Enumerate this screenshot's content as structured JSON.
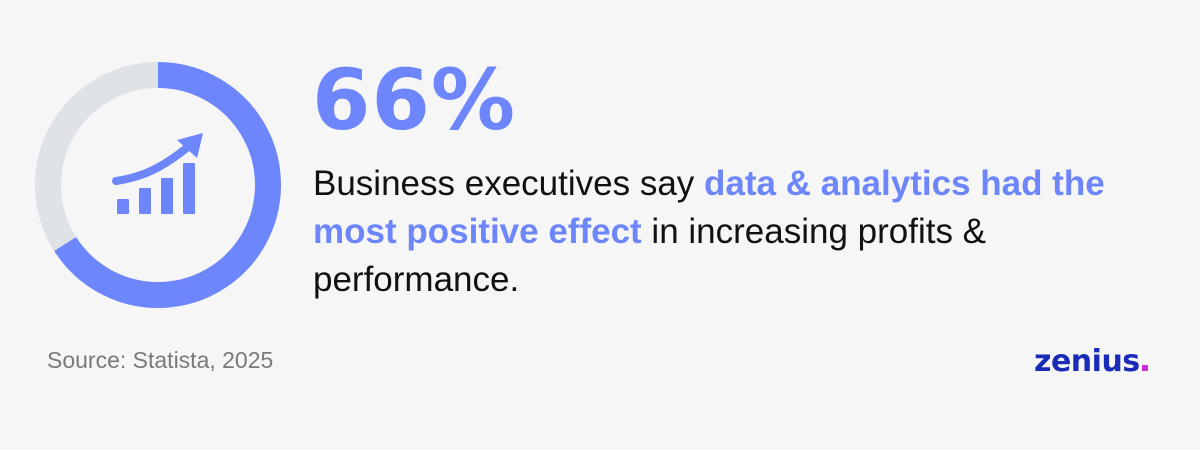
{
  "chart_data": {
    "type": "pie",
    "variant": "donut",
    "values": [
      66,
      34
    ],
    "colors": [
      "#6d86fb",
      "#dfe2e7"
    ],
    "center_icon": "growth-bar-chart-icon"
  },
  "headline": "66%",
  "statement": {
    "before": "Business executives say ",
    "highlight": "data & analytics had the most positive effect",
    "after": " in increasing profits & performance."
  },
  "source": "Source: Statista, 2025",
  "logo": {
    "word": "zenius",
    "word_color": "#1a2bb8",
    "dot_color": "#cc2fd6"
  },
  "colors": {
    "accent": "#6d86fb",
    "ring_track": "#dfe2e7",
    "text": "#111111",
    "muted": "#7a7a7a",
    "background": "#f6f6f6"
  }
}
